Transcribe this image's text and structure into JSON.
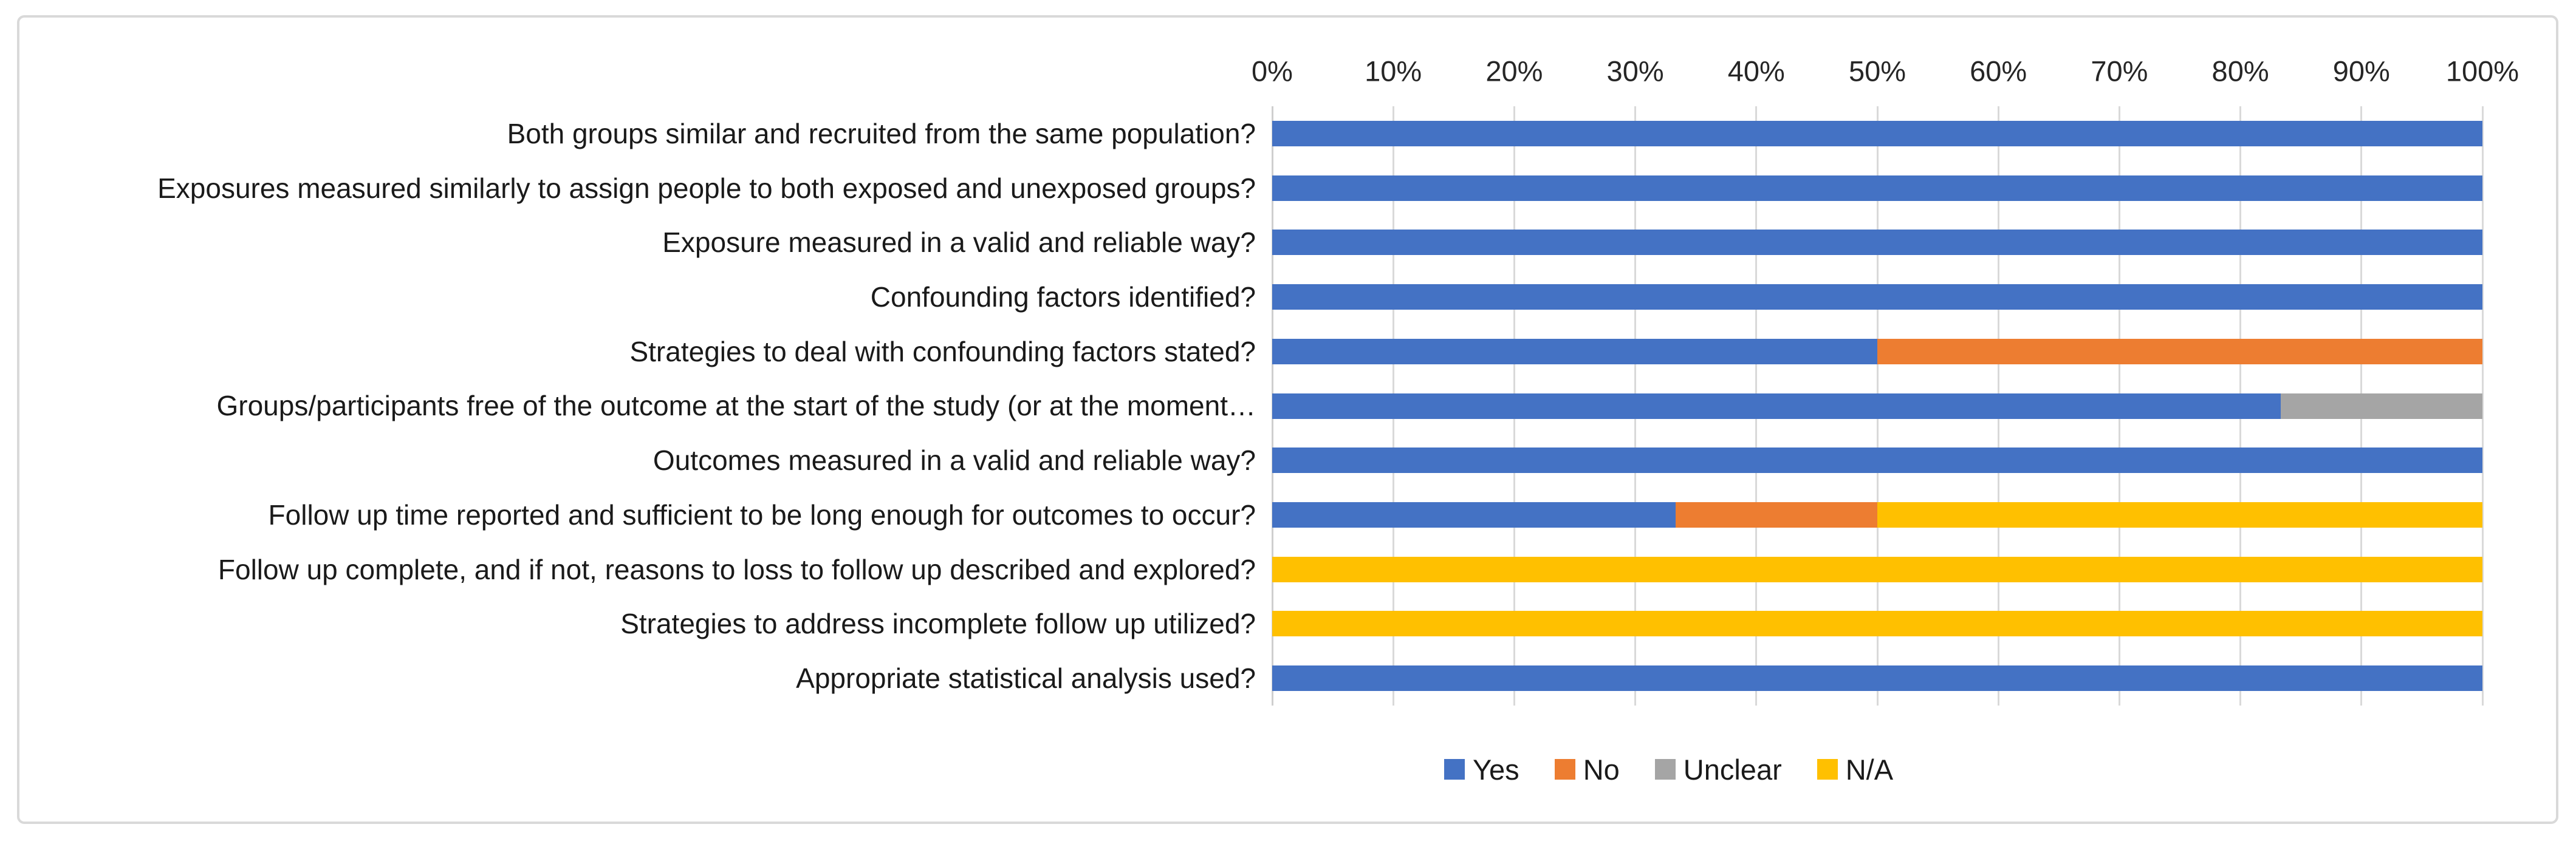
{
  "chart_data": {
    "type": "bar",
    "orientation": "horizontal",
    "stacked": true,
    "title": "",
    "xlabel": "",
    "ylabel": "",
    "x_axis": {
      "position": "top",
      "min": 0,
      "max": 100,
      "tick_step": 10,
      "tick_labels": [
        "0%",
        "10%",
        "20%",
        "30%",
        "40%",
        "50%",
        "60%",
        "70%",
        "80%",
        "90%",
        "100%"
      ]
    },
    "grid": "vertical",
    "categories": [
      "Both groups similar and recruited from the same population?",
      "Exposures measured similarly to assign people to both exposed and unexposed groups?",
      "Exposure measured in a valid and reliable way?",
      "Confounding factors identified?",
      "Strategies to deal with confounding factors stated?",
      "Groups/participants free of the outcome at the start of the study (or at the moment…",
      "Outcomes measured in a valid and reliable way?",
      "Follow up time reported and sufficient to be long enough for outcomes to occur?",
      "Follow up complete, and if not, reasons to loss to follow up described and explored?",
      "Strategies to address incomplete follow up utilized?",
      "Appropriate statistical analysis used?"
    ],
    "series": [
      {
        "name": "Yes",
        "color": "#4472C4",
        "values": [
          100,
          100,
          100,
          100,
          50,
          83.333,
          100,
          33.333,
          0,
          0,
          100
        ]
      },
      {
        "name": "No",
        "color": "#ED7D31",
        "values": [
          0,
          0,
          0,
          0,
          50,
          0,
          0,
          16.667,
          0,
          0,
          0
        ]
      },
      {
        "name": "Unclear",
        "color": "#A5A5A5",
        "values": [
          0,
          0,
          0,
          0,
          0,
          16.667,
          0,
          0,
          0,
          0,
          0
        ]
      },
      {
        "name": "N/A",
        "color": "#FFC000",
        "values": [
          0,
          0,
          0,
          0,
          0,
          0,
          0,
          50,
          100,
          100,
          0
        ]
      }
    ],
    "legend": {
      "position": "bottom",
      "entries": [
        "Yes",
        "No",
        "Unclear",
        "N/A"
      ]
    }
  },
  "style_colors": {
    "gridline": "#d9d9d9",
    "figure_border": "#d9d9d9",
    "tick_text": "#262626",
    "label_text": "#1a1a1a"
  }
}
